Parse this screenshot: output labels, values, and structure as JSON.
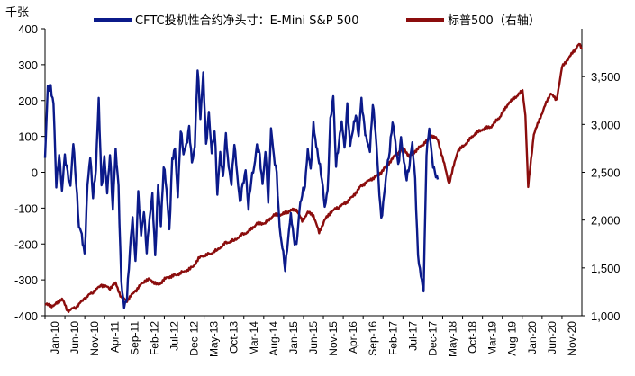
{
  "chart_data": {
    "type": "line",
    "title": "",
    "unit_label_left": "千张",
    "y_left": {
      "min": -400,
      "max": 400,
      "ticks": [
        -400,
        -300,
        -200,
        -100,
        0,
        100,
        200,
        300,
        400
      ],
      "tick_labels": [
        "-400",
        "-300",
        "-200",
        "-100",
        "0",
        "100",
        "200",
        "300",
        "400"
      ]
    },
    "y_right": {
      "min": 1000,
      "max": 4000,
      "ticks": [
        1000,
        1500,
        2000,
        2500,
        3000,
        3500
      ],
      "tick_labels": [
        "1,000",
        "1,500",
        "2,000",
        "2,500",
        "3,000",
        "3,500"
      ]
    },
    "x_ticks": [
      "Jan-10",
      "Jun-10",
      "Nov-10",
      "Apr-11",
      "Sep-11",
      "Feb-12",
      "Jul-12",
      "Dec-12",
      "May-13",
      "Oct-13",
      "Mar-14",
      "Aug-14",
      "Jan-15",
      "Jun-15",
      "Nov-15",
      "Apr-16",
      "Sep-16",
      "Feb-17",
      "Jul-17",
      "Dec-17",
      "May-18",
      "Oct-18",
      "Mar-19",
      "Aug-19",
      "Jan-20",
      "Jun-20",
      "Nov-20"
    ],
    "legend": [
      "CFTC投机性合约净头寸：E-Mini S&P 500",
      "标普500（右轴）"
    ],
    "colors": {
      "net_position": "#0b1a8a",
      "sp500": "#8b0d0d",
      "axis": "#000000"
    },
    "series": [
      {
        "name": "CFTC投机性合约净头寸：E-Mini S&P 500",
        "axis": "left",
        "points": [
          [
            0,
            40
          ],
          [
            1,
            230
          ],
          [
            2,
            240
          ],
          [
            3,
            190
          ],
          [
            4,
            -40
          ],
          [
            5,
            60
          ],
          [
            6,
            -50
          ],
          [
            7,
            40
          ],
          [
            8,
            0
          ],
          [
            9,
            -40
          ],
          [
            10,
            80
          ],
          [
            11,
            -20
          ],
          [
            12,
            -150
          ],
          [
            13,
            -180
          ],
          [
            14,
            -230
          ],
          [
            15,
            -40
          ],
          [
            16,
            40
          ],
          [
            17,
            -60
          ],
          [
            18,
            10
          ],
          [
            19,
            200
          ],
          [
            20,
            -40
          ],
          [
            21,
            40
          ],
          [
            22,
            -60
          ],
          [
            23,
            60
          ],
          [
            24,
            -100
          ],
          [
            25,
            60
          ],
          [
            26,
            -40
          ],
          [
            27,
            -310
          ],
          [
            28,
            -380
          ],
          [
            29,
            -340
          ],
          [
            30,
            -220
          ],
          [
            31,
            -130
          ],
          [
            32,
            -250
          ],
          [
            33,
            -60
          ],
          [
            34,
            -180
          ],
          [
            35,
            -100
          ],
          [
            36,
            -220
          ],
          [
            37,
            -130
          ],
          [
            38,
            -60
          ],
          [
            39,
            -240
          ],
          [
            40,
            -40
          ],
          [
            41,
            -140
          ],
          [
            42,
            20
          ],
          [
            43,
            -50
          ],
          [
            44,
            -160
          ],
          [
            45,
            30
          ],
          [
            46,
            60
          ],
          [
            47,
            -60
          ],
          [
            48,
            120
          ],
          [
            49,
            50
          ],
          [
            50,
            80
          ],
          [
            51,
            120
          ],
          [
            52,
            20
          ],
          [
            53,
            80
          ],
          [
            54,
            290
          ],
          [
            55,
            150
          ],
          [
            56,
            280
          ],
          [
            57,
            70
          ],
          [
            58,
            160
          ],
          [
            59,
            60
          ],
          [
            60,
            120
          ],
          [
            61,
            -60
          ],
          [
            62,
            60
          ],
          [
            63,
            -20
          ],
          [
            64,
            100
          ],
          [
            65,
            20
          ],
          [
            66,
            -30
          ],
          [
            67,
            80
          ],
          [
            68,
            0
          ],
          [
            69,
            -90
          ],
          [
            70,
            -40
          ],
          [
            71,
            10
          ],
          [
            72,
            -100
          ],
          [
            73,
            -20
          ],
          [
            74,
            20
          ],
          [
            75,
            70
          ],
          [
            76,
            40
          ],
          [
            77,
            -30
          ],
          [
            78,
            60
          ],
          [
            79,
            -80
          ],
          [
            80,
            130
          ],
          [
            81,
            40
          ],
          [
            82,
            -10
          ],
          [
            83,
            -150
          ],
          [
            84,
            -210
          ],
          [
            85,
            -270
          ],
          [
            86,
            -180
          ],
          [
            87,
            -120
          ],
          [
            88,
            -190
          ],
          [
            89,
            -200
          ],
          [
            90,
            -110
          ],
          [
            91,
            -60
          ],
          [
            92,
            -30
          ],
          [
            93,
            60
          ],
          [
            94,
            0
          ],
          [
            95,
            140
          ],
          [
            96,
            70
          ],
          [
            97,
            30
          ],
          [
            98,
            -10
          ],
          [
            99,
            -100
          ],
          [
            100,
            -60
          ],
          [
            101,
            150
          ],
          [
            102,
            210
          ],
          [
            103,
            20
          ],
          [
            104,
            90
          ],
          [
            105,
            140
          ],
          [
            106,
            60
          ],
          [
            107,
            190
          ],
          [
            108,
            70
          ],
          [
            109,
            120
          ],
          [
            110,
            170
          ],
          [
            111,
            100
          ],
          [
            112,
            200
          ],
          [
            113,
            130
          ],
          [
            114,
            80
          ],
          [
            115,
            60
          ],
          [
            116,
            200
          ],
          [
            117,
            110
          ],
          [
            118,
            -20
          ],
          [
            119,
            -130
          ],
          [
            120,
            -70
          ],
          [
            121,
            10
          ],
          [
            122,
            70
          ],
          [
            123,
            140
          ],
          [
            124,
            80
          ],
          [
            125,
            20
          ],
          [
            126,
            90
          ],
          [
            127,
            30
          ],
          [
            128,
            -10
          ],
          [
            129,
            20
          ],
          [
            130,
            80
          ],
          [
            131,
            -20
          ],
          [
            132,
            -240
          ],
          [
            133,
            -290
          ],
          [
            134,
            -320
          ],
          [
            135,
            50
          ],
          [
            136,
            120
          ],
          [
            137,
            40
          ],
          [
            138,
            -10
          ],
          [
            139,
            -20
          ]
        ]
      },
      {
        "name": "标普500（右轴）",
        "axis": "right",
        "points": [
          [
            0,
            1120
          ],
          [
            3,
            1100
          ],
          [
            6,
            1180
          ],
          [
            8,
            1050
          ],
          [
            11,
            1090
          ],
          [
            14,
            1180
          ],
          [
            17,
            1250
          ],
          [
            20,
            1320
          ],
          [
            23,
            1290
          ],
          [
            25,
            1340
          ],
          [
            27,
            1190
          ],
          [
            29,
            1160
          ],
          [
            32,
            1260
          ],
          [
            35,
            1360
          ],
          [
            37,
            1380
          ],
          [
            40,
            1320
          ],
          [
            43,
            1400
          ],
          [
            46,
            1420
          ],
          [
            49,
            1460
          ],
          [
            52,
            1500
          ],
          [
            55,
            1620
          ],
          [
            58,
            1640
          ],
          [
            61,
            1690
          ],
          [
            64,
            1760
          ],
          [
            67,
            1790
          ],
          [
            70,
            1850
          ],
          [
            72,
            1880
          ],
          [
            75,
            1960
          ],
          [
            78,
            1970
          ],
          [
            81,
            2050
          ],
          [
            84,
            2060
          ],
          [
            87,
            2100
          ],
          [
            89,
            2110
          ],
          [
            91,
            1990
          ],
          [
            93,
            2080
          ],
          [
            95,
            2050
          ],
          [
            97,
            1870
          ],
          [
            99,
            2000
          ],
          [
            101,
            2080
          ],
          [
            104,
            2140
          ],
          [
            106,
            2170
          ],
          [
            109,
            2250
          ],
          [
            112,
            2360
          ],
          [
            115,
            2420
          ],
          [
            118,
            2470
          ],
          [
            121,
            2570
          ],
          [
            124,
            2680
          ],
          [
            127,
            2750
          ],
          [
            129,
            2660
          ],
          [
            131,
            2720
          ],
          [
            134,
            2800
          ],
          [
            137,
            2880
          ],
          [
            139,
            2840
          ],
          [
            141,
            2620
          ],
          [
            143,
            2380
          ],
          [
            146,
            2720
          ],
          [
            149,
            2800
          ],
          [
            152,
            2900
          ],
          [
            155,
            2950
          ],
          [
            158,
            2980
          ],
          [
            161,
            3080
          ],
          [
            164,
            3220
          ],
          [
            167,
            3300
          ],
          [
            169,
            3350
          ],
          [
            170,
            3100
          ],
          [
            171,
            2350
          ],
          [
            173,
            2900
          ],
          [
            175,
            3050
          ],
          [
            177,
            3200
          ],
          [
            179,
            3330
          ],
          [
            181,
            3250
          ],
          [
            183,
            3600
          ],
          [
            185,
            3680
          ],
          [
            187,
            3760
          ],
          [
            189,
            3840
          ],
          [
            190,
            3790
          ]
        ]
      }
    ]
  }
}
